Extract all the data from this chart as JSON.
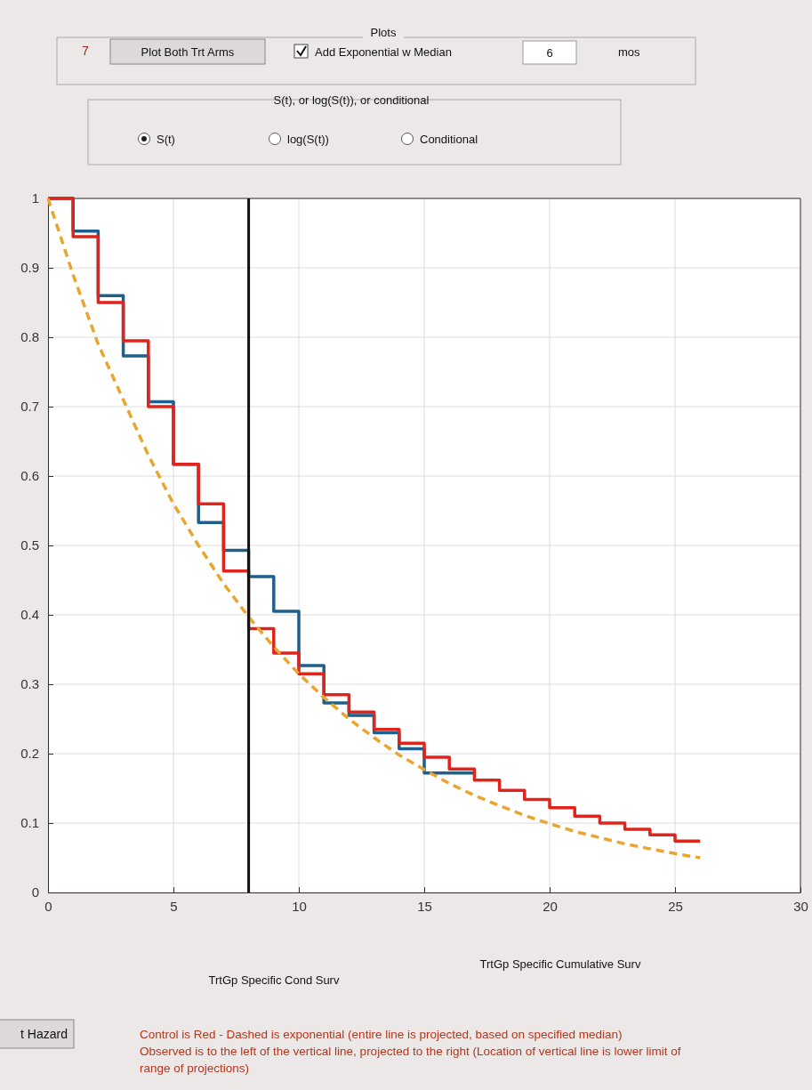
{
  "chart_data": {
    "type": "step",
    "xlim": [
      0,
      30
    ],
    "xticks": [
      0,
      5,
      10,
      15,
      20,
      25,
      30
    ],
    "ylim": [
      0,
      1
    ],
    "yticks": [
      0,
      0.1,
      0.2,
      0.3,
      0.4,
      0.5,
      0.6,
      0.7,
      0.8,
      0.9,
      1
    ],
    "grid": true,
    "marker": "none",
    "series": [
      {
        "color": "#1f5f8b",
        "line_style": "solid",
        "x": [
          0,
          1,
          2,
          3,
          4,
          5,
          6,
          7,
          8,
          9,
          10,
          11,
          12,
          13,
          14,
          15,
          16,
          17
        ],
        "values": [
          1,
          0.953,
          0.86,
          0.773,
          0.707,
          0.617,
          0.533,
          0.493,
          0.455,
          0.405,
          0.327,
          0.273,
          0.255,
          0.23,
          0.207,
          0.172,
          0.172,
          0.172
        ]
      },
      {
        "color": "#e0241c",
        "line_style": "solid",
        "x": [
          0,
          1,
          2,
          3,
          4,
          5,
          6,
          7,
          8,
          9,
          10,
          11,
          12,
          13,
          14,
          15,
          16,
          17,
          18,
          19,
          20,
          21,
          22,
          23,
          24,
          25,
          26
        ],
        "values": [
          1,
          0.945,
          0.85,
          0.795,
          0.7,
          0.617,
          0.56,
          0.463,
          0.38,
          0.345,
          0.315,
          0.285,
          0.26,
          0.235,
          0.215,
          0.195,
          0.178,
          0.162,
          0.147,
          0.134,
          0.122,
          0.11,
          0.1,
          0.091,
          0.083,
          0.074,
          0.074
        ]
      },
      {
        "type": "line",
        "color": "#e8a630",
        "line_style": "dashed",
        "x": [
          0,
          1,
          2,
          3,
          4,
          5,
          6,
          7,
          8,
          9,
          10,
          11,
          12,
          13,
          14,
          15,
          16,
          17,
          18,
          19,
          20,
          21,
          22,
          23,
          24,
          25,
          26
        ],
        "values": [
          1,
          0.89,
          0.79,
          0.71,
          0.63,
          0.56,
          0.5,
          0.445,
          0.397,
          0.354,
          0.315,
          0.281,
          0.25,
          0.223,
          0.198,
          0.177,
          0.157,
          0.14,
          0.125,
          0.111,
          0.099,
          0.088,
          0.079,
          0.07,
          0.063,
          0.056,
          0.05
        ]
      }
    ],
    "ref_lines": [
      {
        "axis": "x",
        "value": 8,
        "color": "#111111"
      }
    ],
    "annotations": [
      "Plots",
      "7",
      "Plot Both Trt Arms",
      "Add Exponential w Median",
      "6",
      "mos",
      "S(t), or log(S(t)), or conditional",
      "S(t)",
      "log(S(t))",
      "Conditional",
      "TrtGp Specific Cond Surv",
      "TrtGp Specific Cumulative Surv",
      "t Hazard",
      "Control is Red - Dashed is exponential (entire line is projected, based on specified median)",
      "Observed is to the left of the vertical line, projected to the right (Location of vertical line is lower limit of range of projections)"
    ]
  }
}
